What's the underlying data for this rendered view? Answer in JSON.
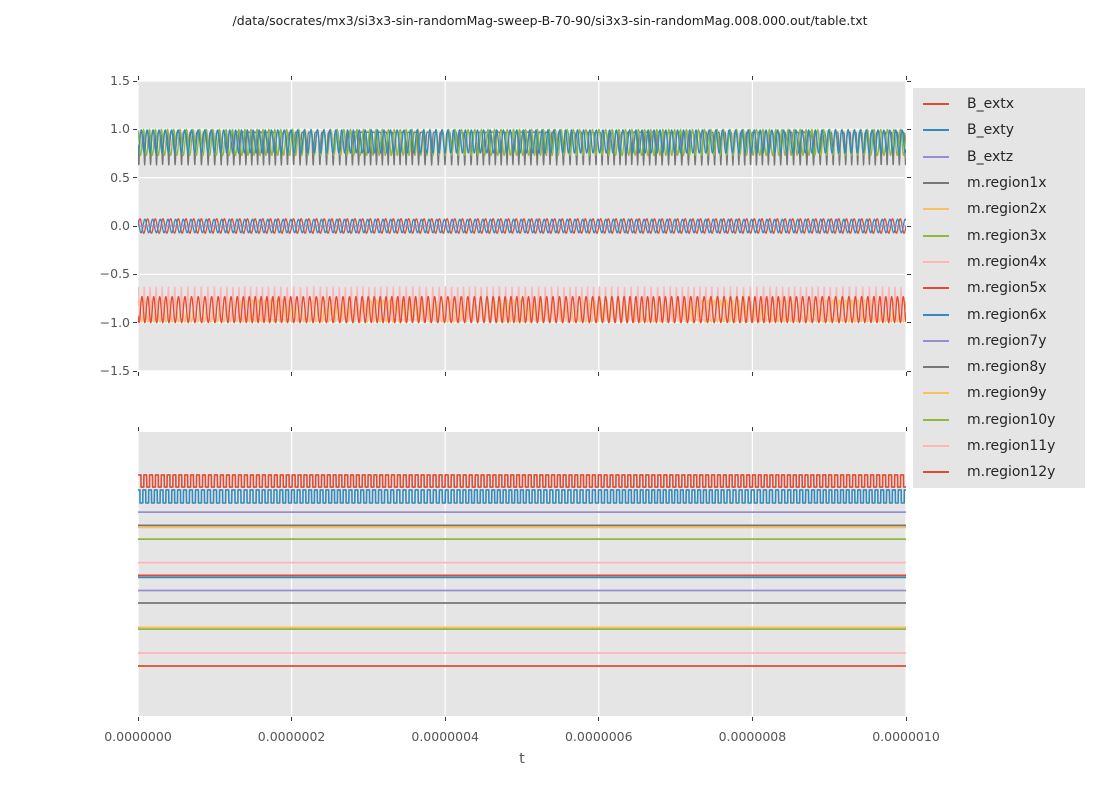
{
  "title": "/data/socrates/mx3/si3x3-sin-randomMag-sweep-B-70-90/si3x3-sin-randomMag.008.000.out/table.txt",
  "x_axis": {
    "label": "t",
    "tick_labels": [
      "0.0000000",
      "0.0000002",
      "0.0000004",
      "0.0000006",
      "0.0000008",
      "0.0000010"
    ]
  },
  "top_plot": {
    "y_tick_labels": [
      "1.5",
      "1.0",
      "0.5",
      "0.0",
      "−0.5",
      "−1.0",
      "−1.5"
    ]
  },
  "bottom_plot": {
    "y_tick_labels": []
  },
  "palette": {
    "red": "#E24A33",
    "blue": "#348ABD",
    "purple": "#988ED5",
    "gray": "#777777",
    "orange": "#FBC15E",
    "green": "#8EBA42",
    "pink": "#FFB5B8",
    "axes_background": "#e5e5e5",
    "grid": "#ffffff",
    "tick_text": "#555555",
    "legend_background": "#e5e5e5"
  },
  "legend": {
    "items": [
      {
        "label": "B_extx",
        "color": "#E24A33"
      },
      {
        "label": "B_exty",
        "color": "#348ABD"
      },
      {
        "label": "B_extz",
        "color": "#988ED5"
      },
      {
        "label": "m.region1x",
        "color": "#777777"
      },
      {
        "label": "m.region2x",
        "color": "#FBC15E"
      },
      {
        "label": "m.region3x",
        "color": "#8EBA42"
      },
      {
        "label": "m.region4x",
        "color": "#FFB5B8"
      },
      {
        "label": "m.region5x",
        "color": "#E24A33"
      },
      {
        "label": "m.region6x",
        "color": "#348ABD"
      },
      {
        "label": "m.region7y",
        "color": "#988ED5"
      },
      {
        "label": "m.region8y",
        "color": "#777777"
      },
      {
        "label": "m.region9y",
        "color": "#FBC15E"
      },
      {
        "label": "m.region10y",
        "color": "#8EBA42"
      },
      {
        "label": "m.region11y",
        "color": "#FFB5B8"
      },
      {
        "label": "m.region12y",
        "color": "#E24A33"
      }
    ]
  },
  "chart_data": [
    {
      "type": "line",
      "title": "",
      "xlabel": "t",
      "ylabel": "",
      "xlim": [
        0,
        1e-06
      ],
      "ylim": [
        -1.5,
        1.5
      ],
      "x_ticks": [
        0,
        2e-07,
        4e-07,
        6e-07,
        8e-07,
        1e-06
      ],
      "y_ticks": [
        1.5,
        1.0,
        0.5,
        0.0,
        -0.5,
        -1.0,
        -1.5
      ],
      "grid": true,
      "legend_position": "outside-right",
      "description": "Dense fast oscillations: m.region1x/3x/6x oscillate in a band between about 0.63 and 1.0; B_extx and B_exty are small sines of amplitude about 0.07 around 0 with B_extz flat at 0; m.region2x/4x/5x oscillate in a band between about -1.0 and -0.63.",
      "series": [
        {
          "name": "B_extx",
          "color": "#E24A33",
          "waveform": "sine",
          "mean": 0,
          "amp": 0.075,
          "periods": 100,
          "phase": 0,
          "lw": 1.3
        },
        {
          "name": "B_exty",
          "color": "#348ABD",
          "waveform": "sine",
          "mean": 0,
          "amp": 0.07,
          "periods": 100,
          "phase": 2.2,
          "lw": 1.3
        },
        {
          "name": "B_extz",
          "color": "#988ED5",
          "waveform": "flat",
          "level": 0,
          "lw": 1.3
        },
        {
          "name": "m.region1x",
          "color": "#777777",
          "waveform": "spikes",
          "base": 0.97,
          "depth": -0.34,
          "sharp": 5,
          "periods": 123,
          "phase": 0.7,
          "wob_amp": 1.3,
          "wob_freq": 6.3,
          "lw": 1.3
        },
        {
          "name": "m.region2x",
          "color": "#FBC15E",
          "waveform": "sine",
          "mean": -0.88,
          "amp": 0.115,
          "periods": 123,
          "phase": 0.5,
          "wob_amp": 1.1,
          "wob_freq": 5.1,
          "lw": 1.3
        },
        {
          "name": "m.region3x",
          "color": "#8EBA42",
          "waveform": "sine",
          "mean": 0.865,
          "amp": 0.135,
          "periods": 123,
          "phase": 2.0,
          "wob_amp": 1.3,
          "wob_freq": 5.7,
          "lw": 1.3
        },
        {
          "name": "m.region4x",
          "color": "#FFB5B8",
          "waveform": "spikes",
          "base": -0.97,
          "depth": 0.34,
          "sharp": 5,
          "periods": 123,
          "phase": 1.2,
          "wob_amp": 1.2,
          "wob_freq": 6.9,
          "lw": 1.3
        },
        {
          "name": "m.region5x",
          "color": "#E24A33",
          "waveform": "sine",
          "mean": -0.865,
          "amp": 0.135,
          "periods": 123,
          "phase": 3.6,
          "wob_amp": 1.4,
          "wob_freq": 6.1,
          "lw": 1.3
        },
        {
          "name": "m.region6x",
          "color": "#348ABD",
          "waveform": "sine",
          "mean": 0.875,
          "amp": 0.12,
          "periods": 123,
          "phase": 4.4,
          "wob_amp": 1.2,
          "wob_freq": 7.3,
          "lw": 1.3
        }
      ]
    },
    {
      "type": "line",
      "title": "",
      "xlabel": "t",
      "ylabel": "",
      "xlim": [
        0,
        1e-06
      ],
      "ylim": [
        0,
        1
      ],
      "x_ticks": [
        0,
        2e-07,
        4e-07,
        6e-07,
        8e-07,
        1e-06
      ],
      "y_ticks": [],
      "grid": true,
      "description": "No y tick labels shown; levels are fractions of the axes height. Two square waves (red B_extx-colored on top, blue below) and thirteen flat horizontal lines stacked beneath; the orange m.region9y and green m.region10y lines nearly coincide.",
      "series": [
        {
          "name": "B_extx",
          "color": "#E24A33",
          "waveform": "square",
          "mean": 0.8275,
          "amp": 0.0215,
          "periods": 130,
          "phase": 0.0,
          "wob_amp": 0.6,
          "wob_freq": 3.7,
          "lw": 1.6
        },
        {
          "name": "B_exty",
          "color": "#348ABD",
          "waveform": "square",
          "mean": 0.773,
          "amp": 0.023,
          "periods": 130,
          "phase": 0.9,
          "wob_amp": 1.0,
          "wob_freq": 4.3,
          "lw": 1.6
        },
        {
          "name": "B_extz",
          "color": "#988ED5",
          "waveform": "flat",
          "level": 0.718,
          "lw": 1.7
        },
        {
          "name": "m.region1x",
          "color": "#777777",
          "waveform": "flat",
          "level": 0.671,
          "lw": 1.7
        },
        {
          "name": "m.region2x",
          "color": "#FBC15E",
          "waveform": "flat",
          "level": 0.664,
          "lw": 1.7
        },
        {
          "name": "m.region3x",
          "color": "#8EBA42",
          "waveform": "flat",
          "level": 0.623,
          "lw": 1.7
        },
        {
          "name": "m.region4x",
          "color": "#FFB5B8",
          "waveform": "flat",
          "level": 0.54,
          "lw": 1.7
        },
        {
          "name": "m.region5x",
          "color": "#E24A33",
          "waveform": "flat",
          "level": 0.495,
          "lw": 1.7
        },
        {
          "name": "m.region6x",
          "color": "#348ABD",
          "waveform": "flat",
          "level": 0.488,
          "lw": 1.7
        },
        {
          "name": "m.region7y",
          "color": "#988ED5",
          "waveform": "flat",
          "level": 0.442,
          "lw": 1.7
        },
        {
          "name": "m.region8y",
          "color": "#777777",
          "waveform": "flat",
          "level": 0.398,
          "lw": 1.7
        },
        {
          "name": "m.region9y",
          "color": "#FBC15E",
          "waveform": "flat",
          "level": 0.312,
          "lw": 1.7
        },
        {
          "name": "m.region10y",
          "color": "#8EBA42",
          "waveform": "flat",
          "level": 0.306,
          "lw": 1.7
        },
        {
          "name": "m.region11y",
          "color": "#FFB5B8",
          "waveform": "flat",
          "level": 0.222,
          "lw": 1.7
        },
        {
          "name": "m.region12y",
          "color": "#E24A33",
          "waveform": "flat",
          "level": 0.176,
          "lw": 1.7
        }
      ]
    }
  ]
}
